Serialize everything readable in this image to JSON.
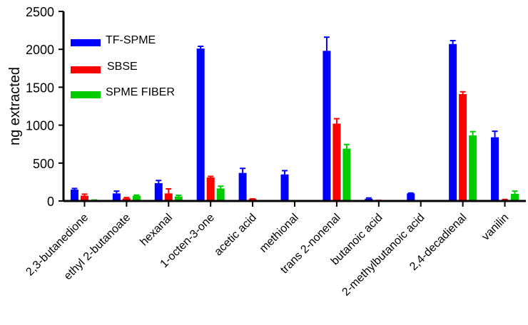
{
  "chart_data": {
    "type": "bar",
    "title": "",
    "xlabel": "",
    "ylabel": "ng extracted",
    "ylim": [
      0,
      2500
    ],
    "yticks": [
      0,
      500,
      1000,
      1500,
      2000,
      2500
    ],
    "categories": [
      "2,3-butanedione",
      "ethyl 2-butanoate",
      "hexanal",
      "1-octen-3-one",
      "acetic acid",
      "methional",
      "trans 2-nonenal",
      "butanoic acid",
      "2-methylbutanoic acid",
      "2,4-decadienal",
      "vanilin"
    ],
    "series": [
      {
        "name": "TF-SPME",
        "color": "#0000ff",
        "values": [
          150,
          100,
          235,
          2010,
          370,
          350,
          1980,
          30,
          100,
          2070,
          840
        ],
        "errors": [
          15,
          30,
          35,
          30,
          60,
          50,
          180,
          10,
          5,
          45,
          80
        ]
      },
      {
        "name": "SBSE",
        "color": "#ff0000",
        "values": [
          70,
          35,
          100,
          310,
          25,
          0,
          1020,
          5,
          0,
          1410,
          15
        ],
        "errors": [
          20,
          10,
          60,
          15,
          3,
          0,
          65,
          3,
          0,
          30,
          5
        ]
      },
      {
        "name": "SPME FIBER",
        "color": "#00cc00",
        "values": [
          10,
          70,
          60,
          165,
          0,
          0,
          690,
          0,
          0,
          865,
          95
        ],
        "errors": [
          3,
          8,
          15,
          30,
          0,
          0,
          55,
          0,
          0,
          50,
          35
        ]
      }
    ],
    "legend": {
      "placement": "top-left",
      "entries": [
        "TF-SPME",
        "SBSE",
        "SPME FIBER"
      ]
    },
    "grid": false
  }
}
